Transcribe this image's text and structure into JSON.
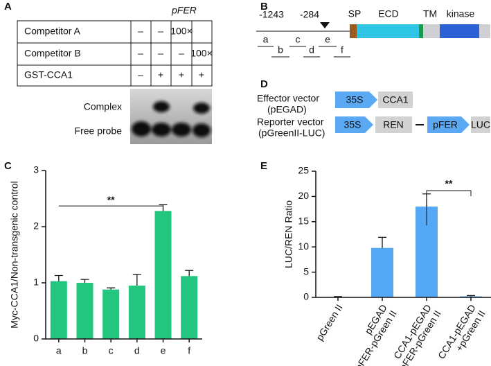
{
  "panel_labels": [
    "A",
    "B",
    "C",
    "D",
    "E"
  ],
  "emsa": {
    "title": "pFER",
    "rows": [
      {
        "label": "Competitor A",
        "cells": [
          "–",
          "–",
          "100×",
          null
        ]
      },
      {
        "label": "Competitor B",
        "cells": [
          "–",
          "–",
          "–",
          "100×"
        ]
      },
      {
        "label": "GST-CCA1",
        "cells": [
          "–",
          "+",
          "+",
          "+"
        ]
      }
    ],
    "band_labels": [
      "Complex",
      "Free probe"
    ]
  },
  "gene_map": {
    "positions": [
      "-1243",
      "-284"
    ],
    "domains": [
      "SP",
      "ECD",
      "TM",
      "kinase"
    ],
    "fragments": [
      "a",
      "b",
      "c",
      "d",
      "e",
      "f"
    ]
  },
  "vectors": {
    "effector": {
      "name": "Effector vector",
      "plasmid": "(pEGAD)",
      "parts": [
        "35S",
        "CCA1"
      ]
    },
    "reporter": {
      "name": "Reporter vector",
      "plasmid": "(pGreenII-LUC)",
      "parts": [
        "35S",
        "REN",
        "pFER",
        "LUC"
      ]
    }
  },
  "chart_data": [
    {
      "type": "bar",
      "y_label": "Myc-CCA1/Non-transgenic control",
      "categories": [
        "a",
        "b",
        "c",
        "d",
        "e",
        "f"
      ],
      "values": [
        1.03,
        1.0,
        0.88,
        0.95,
        2.28,
        1.12
      ],
      "errors": [
        0.1,
        0.06,
        0.03,
        0.2,
        0.11,
        0.1
      ],
      "color": "#22c67f",
      "ylim": [
        0,
        3
      ],
      "yticks": [
        0,
        1,
        2,
        3
      ],
      "annotation": "**"
    },
    {
      "type": "bar",
      "y_label": "LUC/REN Ratio",
      "categories": [
        "pGreen II",
        "pEGAD\n+pFER-pGreen II",
        "CCA1-pEGAD\n+pFER-pGreen II",
        "CCA1-pEGAD\n+pGreen II"
      ],
      "values": [
        0.1,
        9.8,
        18.0,
        0.2
      ],
      "errors": [
        0.05,
        2.1,
        2.5,
        0.15
      ],
      "color": "#55a8f5",
      "ylim": [
        0,
        25
      ],
      "yticks": [
        0,
        5,
        10,
        15,
        20,
        25
      ],
      "annotation": "**"
    }
  ]
}
